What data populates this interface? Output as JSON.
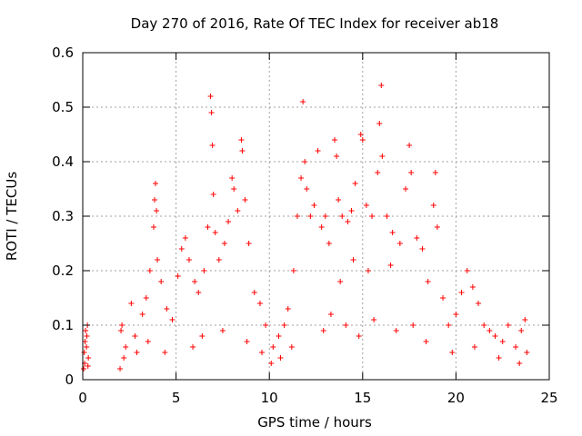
{
  "chart_data": {
    "type": "scatter",
    "title": "Day 270 of 2016, Rate Of TEC Index for receiver ab18",
    "xlabel": "GPS time / hours",
    "ylabel": "ROTI / TECUs",
    "xlim": [
      0,
      25
    ],
    "ylim": [
      0,
      0.6
    ],
    "xticks": [
      "0",
      "5",
      "10",
      "15",
      "20",
      "25"
    ],
    "yticks": [
      "0",
      "0.1",
      "0.2",
      "0.3",
      "0.4",
      "0.5",
      "0.6"
    ],
    "grid": true,
    "marker": "plus",
    "color": "#ff0000",
    "series": [
      {
        "name": "",
        "points": [
          [
            0.05,
            0.02
          ],
          [
            0.1,
            0.03
          ],
          [
            0.15,
            0.09
          ],
          [
            0.2,
            0.06
          ],
          [
            0.25,
            0.1
          ],
          [
            0.3,
            0.04
          ],
          [
            0.12,
            0.07
          ],
          [
            0.22,
            0.08
          ],
          [
            0.28,
            0.025
          ],
          [
            0.08,
            0.05
          ],
          [
            2.0,
            0.02
          ],
          [
            2.05,
            0.09
          ],
          [
            2.1,
            0.1
          ],
          [
            2.3,
            0.06
          ],
          [
            2.6,
            0.14
          ],
          [
            2.8,
            0.08
          ],
          [
            3.2,
            0.12
          ],
          [
            3.4,
            0.15
          ],
          [
            3.6,
            0.2
          ],
          [
            3.8,
            0.28
          ],
          [
            3.85,
            0.33
          ],
          [
            3.9,
            0.36
          ],
          [
            3.95,
            0.31
          ],
          [
            4.0,
            0.22
          ],
          [
            4.2,
            0.18
          ],
          [
            4.5,
            0.13
          ],
          [
            4.8,
            0.11
          ],
          [
            5.1,
            0.19
          ],
          [
            5.3,
            0.24
          ],
          [
            5.5,
            0.26
          ],
          [
            5.7,
            0.22
          ],
          [
            6.0,
            0.18
          ],
          [
            6.2,
            0.16
          ],
          [
            6.5,
            0.2
          ],
          [
            6.7,
            0.28
          ],
          [
            6.85,
            0.52
          ],
          [
            6.9,
            0.49
          ],
          [
            6.95,
            0.43
          ],
          [
            7.0,
            0.34
          ],
          [
            7.1,
            0.27
          ],
          [
            7.3,
            0.22
          ],
          [
            7.6,
            0.25
          ],
          [
            7.8,
            0.29
          ],
          [
            8.0,
            0.37
          ],
          [
            8.1,
            0.35
          ],
          [
            8.3,
            0.31
          ],
          [
            8.5,
            0.44
          ],
          [
            8.55,
            0.42
          ],
          [
            8.7,
            0.33
          ],
          [
            8.9,
            0.25
          ],
          [
            9.2,
            0.16
          ],
          [
            9.5,
            0.14
          ],
          [
            9.8,
            0.1
          ],
          [
            10.2,
            0.06
          ],
          [
            10.5,
            0.08
          ],
          [
            10.8,
            0.1
          ],
          [
            11.0,
            0.13
          ],
          [
            11.3,
            0.2
          ],
          [
            11.5,
            0.3
          ],
          [
            11.7,
            0.37
          ],
          [
            11.8,
            0.51
          ],
          [
            11.9,
            0.4
          ],
          [
            12.0,
            0.35
          ],
          [
            12.2,
            0.3
          ],
          [
            12.4,
            0.32
          ],
          [
            12.6,
            0.42
          ],
          [
            12.8,
            0.28
          ],
          [
            13.0,
            0.3
          ],
          [
            13.2,
            0.25
          ],
          [
            13.5,
            0.44
          ],
          [
            13.6,
            0.41
          ],
          [
            13.7,
            0.33
          ],
          [
            13.9,
            0.3
          ],
          [
            14.2,
            0.29
          ],
          [
            14.4,
            0.31
          ],
          [
            14.6,
            0.36
          ],
          [
            14.9,
            0.45
          ],
          [
            15.0,
            0.44
          ],
          [
            15.2,
            0.32
          ],
          [
            15.5,
            0.3
          ],
          [
            15.8,
            0.38
          ],
          [
            15.9,
            0.47
          ],
          [
            16.0,
            0.54
          ],
          [
            16.05,
            0.41
          ],
          [
            16.3,
            0.3
          ],
          [
            16.6,
            0.27
          ],
          [
            17.0,
            0.25
          ],
          [
            17.3,
            0.35
          ],
          [
            17.5,
            0.43
          ],
          [
            17.6,
            0.38
          ],
          [
            17.9,
            0.26
          ],
          [
            18.2,
            0.24
          ],
          [
            18.5,
            0.18
          ],
          [
            18.8,
            0.32
          ],
          [
            18.9,
            0.38
          ],
          [
            19.0,
            0.28
          ],
          [
            19.3,
            0.15
          ],
          [
            19.6,
            0.1
          ],
          [
            20.0,
            0.12
          ],
          [
            20.3,
            0.16
          ],
          [
            20.6,
            0.2
          ],
          [
            20.9,
            0.17
          ],
          [
            21.2,
            0.14
          ],
          [
            21.5,
            0.1
          ],
          [
            21.8,
            0.09
          ],
          [
            22.1,
            0.08
          ],
          [
            22.5,
            0.07
          ],
          [
            22.8,
            0.1
          ],
          [
            23.2,
            0.06
          ],
          [
            23.5,
            0.09
          ],
          [
            23.7,
            0.11
          ],
          [
            23.8,
            0.05
          ],
          [
            2.2,
            0.04
          ],
          [
            2.9,
            0.05
          ],
          [
            3.5,
            0.07
          ],
          [
            4.4,
            0.05
          ],
          [
            5.9,
            0.06
          ],
          [
            6.4,
            0.08
          ],
          [
            7.5,
            0.09
          ],
          [
            8.8,
            0.07
          ],
          [
            9.6,
            0.05
          ],
          [
            10.1,
            0.03
          ],
          [
            10.6,
            0.04
          ],
          [
            11.2,
            0.06
          ],
          [
            12.9,
            0.09
          ],
          [
            13.3,
            0.12
          ],
          [
            14.1,
            0.1
          ],
          [
            14.8,
            0.08
          ],
          [
            15.6,
            0.11
          ],
          [
            16.8,
            0.09
          ],
          [
            17.7,
            0.1
          ],
          [
            18.4,
            0.07
          ],
          [
            19.8,
            0.05
          ],
          [
            21.0,
            0.06
          ],
          [
            22.3,
            0.04
          ],
          [
            23.4,
            0.03
          ],
          [
            14.5,
            0.22
          ],
          [
            15.3,
            0.2
          ],
          [
            13.8,
            0.18
          ],
          [
            16.5,
            0.21
          ]
        ]
      }
    ]
  }
}
